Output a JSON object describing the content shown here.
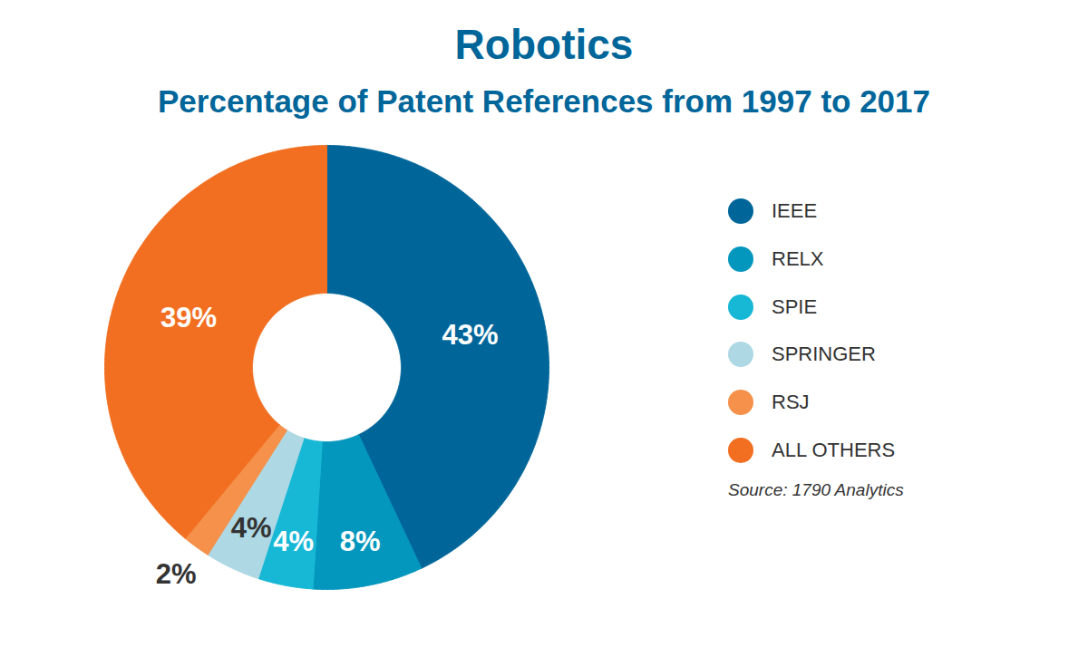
{
  "chart_data": {
    "type": "donut",
    "title": "Robotics",
    "subtitle": "Percentage of Patent References from 1997 to 2017",
    "categories": [
      "IEEE",
      "RELX",
      "SPIE",
      "SPRINGER",
      "RSJ",
      "ALL OTHERS"
    ],
    "values": [
      43,
      8,
      4,
      4,
      2,
      39
    ],
    "value_labels": [
      "43%",
      "8%",
      "4%",
      "4%",
      "2%",
      "39%"
    ],
    "colors": [
      "#00669a",
      "#0497bd",
      "#17b8d6",
      "#add8e4",
      "#f5914a",
      "#f26f21"
    ],
    "data_labels": true,
    "legend": "right",
    "source": "Source: 1790 Analytics"
  }
}
